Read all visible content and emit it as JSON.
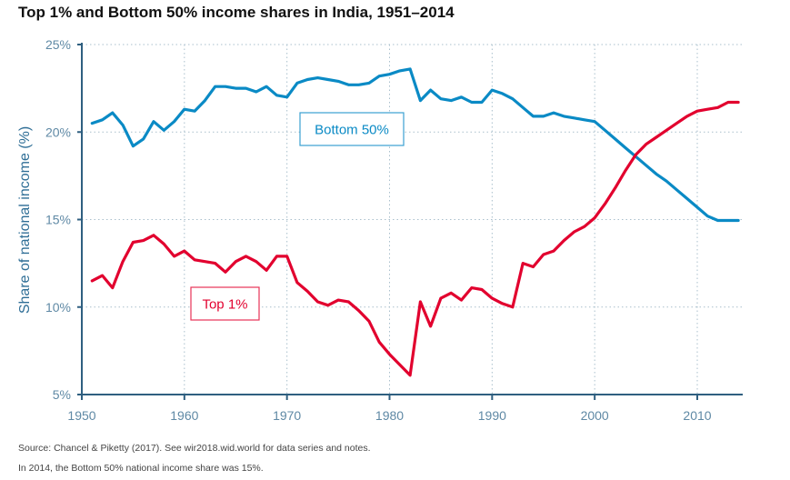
{
  "chart_data": {
    "type": "line",
    "title": "Top 1% and Bottom 50% income shares in India, 1951–2014",
    "xlabel": "",
    "ylabel": "Share of national income (%)",
    "xlim": [
      1950,
      2015
    ],
    "ylim": [
      5,
      25
    ],
    "xticks": [
      1950,
      1960,
      1970,
      1980,
      1990,
      2000,
      2010
    ],
    "xtick_labels": [
      "1950",
      "1960",
      "1970",
      "1980",
      "1990",
      "2000",
      "2010"
    ],
    "yticks": [
      5,
      10,
      15,
      20,
      25
    ],
    "ytick_labels": [
      "5%",
      "10%",
      "15%",
      "20%",
      "25%"
    ],
    "grid": true,
    "legend": "inline labels",
    "x": [
      1951,
      1952,
      1953,
      1954,
      1955,
      1956,
      1957,
      1958,
      1959,
      1960,
      1961,
      1962,
      1963,
      1964,
      1965,
      1966,
      1967,
      1968,
      1969,
      1970,
      1971,
      1972,
      1973,
      1974,
      1975,
      1976,
      1977,
      1978,
      1979,
      1980,
      1981,
      1982,
      1983,
      1984,
      1985,
      1986,
      1987,
      1988,
      1989,
      1990,
      1991,
      1992,
      1993,
      1994,
      1995,
      1996,
      1997,
      1998,
      1999,
      2000,
      2001,
      2002,
      2003,
      2004,
      2005,
      2006,
      2007,
      2008,
      2009,
      2010,
      2011,
      2012,
      2013,
      2014
    ],
    "series": [
      {
        "name": "Bottom 50%",
        "label": "Bottom 50%",
        "color": "#0a8ac5",
        "values": [
          20.5,
          20.7,
          21.1,
          20.4,
          19.2,
          19.6,
          20.6,
          20.1,
          20.6,
          21.3,
          21.2,
          21.8,
          22.6,
          22.6,
          22.5,
          22.5,
          22.3,
          22.6,
          22.1,
          22.0,
          22.8,
          23.0,
          23.1,
          23.0,
          22.9,
          22.7,
          22.7,
          22.8,
          23.2,
          23.3,
          23.5,
          23.6,
          21.8,
          22.4,
          21.9,
          21.8,
          22.0,
          21.7,
          21.7,
          22.4,
          22.2,
          21.9,
          21.4,
          20.9,
          20.9,
          21.1,
          20.9,
          20.8,
          20.7,
          20.6,
          20.1,
          19.6,
          19.1,
          18.6,
          18.1,
          17.6,
          17.2,
          16.7,
          16.2,
          15.7,
          15.2,
          14.95,
          14.95,
          14.95
        ]
      },
      {
        "name": "Top 1%",
        "label": "Top 1%",
        "color": "#e2002e",
        "values": [
          11.5,
          11.8,
          11.1,
          12.6,
          13.7,
          13.8,
          14.1,
          13.6,
          12.9,
          13.2,
          12.7,
          12.6,
          12.5,
          12.0,
          12.6,
          12.9,
          12.6,
          12.1,
          12.9,
          12.9,
          11.4,
          10.9,
          10.3,
          10.1,
          10.4,
          10.3,
          9.8,
          9.2,
          8.0,
          7.3,
          6.7,
          6.1,
          10.3,
          8.9,
          10.5,
          10.8,
          10.4,
          11.1,
          11.0,
          10.5,
          10.2,
          10.0,
          12.5,
          12.3,
          13.0,
          13.2,
          13.8,
          14.3,
          14.6,
          15.1,
          15.9,
          16.8,
          17.8,
          18.7,
          19.3,
          19.7,
          20.1,
          20.5,
          20.9,
          21.2,
          21.3,
          21.4,
          21.7,
          21.7
        ]
      }
    ],
    "annotations": [
      "Bottom 50%",
      "Top 1%"
    ]
  },
  "footer": {
    "source": "Source: Chancel & Piketty (2017). See wir2018.wid.world for data series and notes.",
    "note": "In 2014, the Bottom 50% national income share was 15%."
  }
}
